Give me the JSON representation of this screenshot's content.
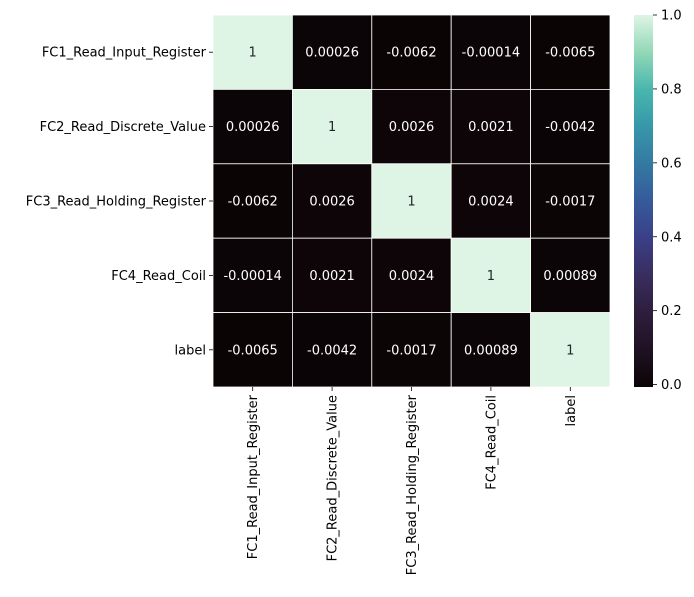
{
  "chart_data": {
    "type": "heatmap",
    "title": "",
    "xlabel": "",
    "ylabel": "",
    "row_labels": [
      "FC1_Read_Input_Register",
      "FC2_Read_Discrete_Value",
      "FC3_Read_Holding_Register",
      "FC4_Read_Coil",
      "label"
    ],
    "col_labels": [
      "FC1_Read_Input_Register",
      "FC2_Read_Discrete_Value",
      "FC3_Read_Holding_Register",
      "FC4_Read_Coil",
      "label"
    ],
    "values": [
      [
        1,
        0.00026,
        -0.0062,
        -0.00014,
        -0.0065
      ],
      [
        0.00026,
        1,
        0.0026,
        0.0021,
        -0.0042
      ],
      [
        -0.0062,
        0.0026,
        1,
        0.0024,
        -0.0017
      ],
      [
        -0.00014,
        0.0021,
        0.0024,
        1,
        0.00089
      ],
      [
        -0.0065,
        -0.0042,
        -0.0017,
        0.00089,
        1
      ]
    ],
    "cell_labels": [
      [
        "1",
        "0.00026",
        "-0.0062",
        "-0.00014",
        "-0.0065"
      ],
      [
        "0.00026",
        "1",
        "0.0026",
        "0.0021",
        "-0.0042"
      ],
      [
        "-0.0062",
        "0.0026",
        "1",
        "0.0024",
        "-0.0017"
      ],
      [
        "-0.00014",
        "0.0021",
        "0.0024",
        "1",
        "0.00089"
      ],
      [
        "-0.0065",
        "-0.0042",
        "-0.0017",
        "0.00089",
        "1"
      ]
    ],
    "colormap": "mako",
    "colorbar": {
      "range": [
        -0.0065,
        1
      ],
      "ticks": [
        0.0,
        0.2,
        0.4,
        0.6,
        0.8,
        1.0
      ],
      "tick_labels": [
        "0.0",
        "0.2",
        "0.4",
        "0.6",
        "0.8",
        "1.0"
      ]
    },
    "grid_lines_color": "#ffffff",
    "low_color": "#0b0405",
    "high_color": "#def5e5"
  }
}
